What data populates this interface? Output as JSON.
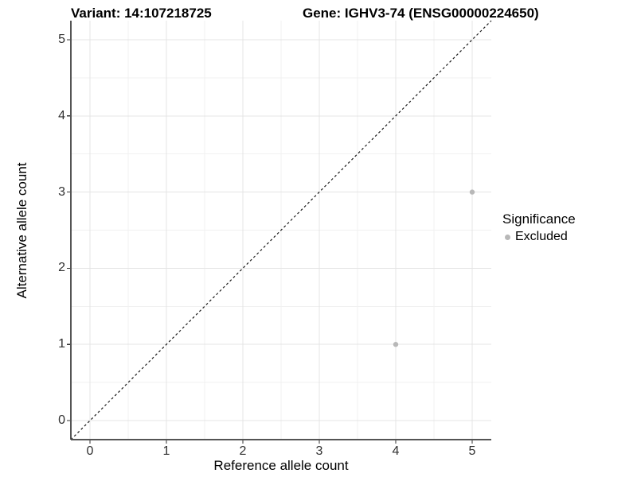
{
  "titles": {
    "variant": "Variant: 14:107218725",
    "gene": "Gene: IGHV3-74 (ENSG00000224650)"
  },
  "chart_data": {
    "type": "scatter",
    "xlabel": "Reference allele count",
    "ylabel": "Alternative allele count",
    "xticks": [
      0,
      1,
      2,
      3,
      4,
      5
    ],
    "yticks": [
      0,
      1,
      2,
      3,
      4,
      5
    ],
    "xlim": [
      -0.25,
      5.25
    ],
    "ylim": [
      -0.25,
      5.25
    ],
    "grid": "major-and-minor",
    "minor_step": 0.5,
    "series": [
      {
        "name": "Excluded",
        "points": [
          {
            "x": 5,
            "y": 3
          },
          {
            "x": 4,
            "y": 1
          }
        ]
      }
    ],
    "identity_line": {
      "type": "y=x",
      "style": "dashed"
    },
    "colors": {
      "point": "#b8b8b8",
      "grid_major": "#e4e4e4",
      "grid_minor": "#f1f1f1",
      "axis_line": "#545454",
      "tick_mark": "#333333",
      "identity_line": "#1a1a1a",
      "background": "#ffffff"
    }
  },
  "legend": {
    "title": "Significance",
    "position": "right",
    "items": [
      {
        "label": "Excluded",
        "color": "#b8b8b8"
      }
    ]
  }
}
